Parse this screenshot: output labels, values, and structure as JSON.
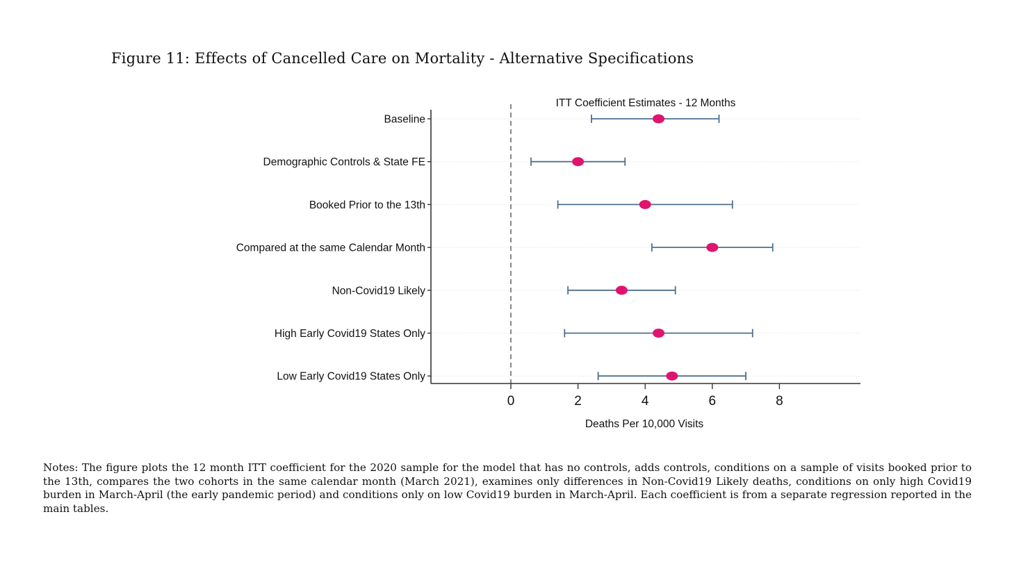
{
  "figure": {
    "title": "Figure 11: Effects of Cancelled Care on Mortality - Alternative Specifications",
    "notes": "Notes: The figure plots the 12 month ITT coefficient for the 2020 sample for the model that has no controls, adds controls, conditions on a sample of visits booked prior to the 13th, compares the two cohorts in the same calendar month (March 2021), examines only differences in Non-Covid19 Likely deaths, conditions on only high Covid19 burden in March-April (the early pandemic period) and conditions only on low Covid19 burden in March-April. Each coefficient is from a separate regression reported in the main tables."
  },
  "chart_data": {
    "type": "scatter",
    "title": "ITT Coefficient Estimates - 12 Months",
    "xlabel": "Deaths Per 10,000 Visits",
    "ylabel": "",
    "xlim": [
      -2.4,
      10.5
    ],
    "xticks": [
      "0",
      "2",
      "4",
      "6",
      "8"
    ],
    "reference_line_x": 0,
    "categories": [
      "Baseline",
      "Demographic Controls & State FE",
      "Booked Prior to the 13th",
      "Compared at the same Calendar Month",
      "Non-Covid19 Likely",
      "High Early Covid19 States Only",
      "Low Early Covid19 States Only"
    ],
    "estimates": [
      4.4,
      2.0,
      4.0,
      6.0,
      3.3,
      4.4,
      4.8
    ],
    "ci_low": [
      2.4,
      0.6,
      1.4,
      4.2,
      1.7,
      1.6,
      2.6
    ],
    "ci_high": [
      6.2,
      3.4,
      6.6,
      7.8,
      4.9,
      7.2,
      7.0
    ],
    "grid": true,
    "colors": {
      "point": "#e0136f",
      "ci": "#4d6f8f",
      "axis": "#333333",
      "refline": "#888888",
      "grid": "#e2e2e2"
    }
  }
}
